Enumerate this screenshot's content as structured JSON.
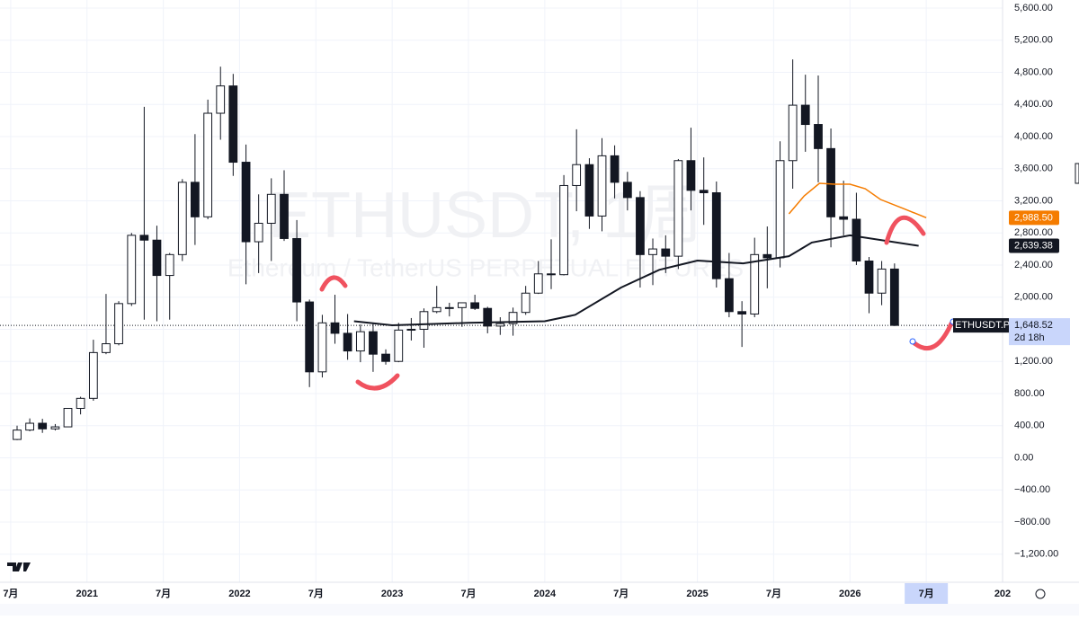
{
  "chart_data": {
    "type": "candlestick",
    "watermark": {
      "symbol": "ETHUSDT, 1周",
      "description": "Ethereum / TetherUS PERPETUAL FUTURES"
    },
    "x": [
      2020.542,
      2020.625,
      2020.708,
      2020.792,
      2020.875,
      2020.958,
      2021.042,
      2021.125,
      2021.208,
      2021.292,
      2021.375,
      2021.458,
      2021.542,
      2021.625,
      2021.708,
      2021.792,
      2021.875,
      2021.958,
      2022.042,
      2022.125,
      2022.208,
      2022.292,
      2022.375,
      2022.458,
      2022.542,
      2022.625,
      2022.708,
      2022.792,
      2022.875,
      2022.958,
      2023.042,
      2023.125,
      2023.208,
      2023.292,
      2023.375,
      2023.458,
      2023.542,
      2023.625,
      2023.708,
      2023.792,
      2023.875,
      2023.958,
      2024.042,
      2024.125,
      2024.208,
      2024.292,
      2024.375,
      2024.458,
      2024.542,
      2024.625,
      2024.708,
      2024.792,
      2024.875,
      2024.958,
      2025.042,
      2025.125,
      2025.208,
      2025.292,
      2025.375,
      2025.458,
      2025.542,
      2025.625,
      2025.708,
      2025.792,
      2025.875,
      2025.958,
      2026.042,
      2026.125,
      2026.208,
      2026.292
    ],
    "open": [
      228,
      345,
      430,
      360,
      385,
      615,
      740,
      1310,
      1420,
      1920,
      2770,
      2710,
      2270,
      2530,
      3430,
      3000,
      4290,
      4630,
      3680,
      2690,
      2920,
      3280,
      2730,
      1940,
      1070,
      1680,
      1550,
      1330,
      1570,
      1290,
      1200,
      1590,
      1600,
      1820,
      1870,
      1870,
      1930,
      1860,
      1640,
      1670,
      1810,
      2050,
      2290,
      2280,
      3390,
      3650,
      3010,
      3760,
      3430,
      3240,
      2530,
      2600,
      2510,
      3700,
      3330,
      3300,
      2230,
      1820,
      1790,
      2530,
      2490,
      3700,
      4390,
      4150,
      3850,
      3000,
      2970,
      2450,
      2050,
      2350
    ],
    "high": [
      400,
      490,
      485,
      420,
      620,
      760,
      1470,
      2040,
      1950,
      2800,
      4370,
      2890,
      2550,
      3470,
      4030,
      4460,
      4870,
      4780,
      3900,
      3280,
      3480,
      3580,
      2960,
      1970,
      1780,
      2030,
      1790,
      1660,
      1680,
      1350,
      1680,
      1740,
      1860,
      2140,
      1930,
      1930,
      2030,
      1880,
      1750,
      1870,
      2140,
      2450,
      2720,
      3520,
      4090,
      3730,
      3980,
      3890,
      3560,
      3320,
      2730,
      2770,
      3720,
      4110,
      3740,
      3440,
      2550,
      1950,
      2740,
      2880,
      3940,
      4960,
      4770,
      4760,
      4100,
      3450,
      3300,
      2500,
      2450,
      2420
    ],
    "low": [
      220,
      330,
      310,
      340,
      380,
      540,
      710,
      1290,
      1400,
      1890,
      1720,
      1700,
      1720,
      2450,
      2650,
      2970,
      3960,
      3510,
      2160,
      2300,
      2450,
      2700,
      1700,
      880,
      1000,
      1420,
      1220,
      1190,
      1070,
      1160,
      1190,
      1460,
      1370,
      1800,
      1760,
      1630,
      1840,
      1550,
      1530,
      1520,
      1780,
      2040,
      2100,
      2270,
      3070,
      2850,
      2820,
      3230,
      3080,
      2120,
      2150,
      2300,
      2350,
      3080,
      2900,
      2120,
      1750,
      1380,
      1750,
      2110,
      2370,
      3350,
      3810,
      3430,
      2620,
      2770,
      2400,
      1800,
      1900,
      1640
    ],
    "close": [
      345,
      430,
      360,
      385,
      615,
      740,
      1310,
      1420,
      1920,
      2770,
      2710,
      2270,
      2530,
      3430,
      3000,
      4290,
      4630,
      3680,
      2690,
      2920,
      3280,
      2730,
      1940,
      1070,
      1680,
      1550,
      1330,
      1570,
      1290,
      1200,
      1590,
      1600,
      1820,
      1870,
      1870,
      1930,
      1860,
      1640,
      1670,
      1810,
      2050,
      2290,
      2280,
      3390,
      3650,
      3010,
      3760,
      3430,
      3240,
      2530,
      2600,
      2510,
      3700,
      3330,
      3300,
      2230,
      1820,
      1790,
      2530,
      2490,
      3700,
      4390,
      4150,
      3850,
      3000,
      2970,
      2450,
      2050,
      2350,
      1648.52
    ],
    "up_color": "#ffffff",
    "down_color": "#131722",
    "wick_color": "#131722",
    "lines": [
      {
        "color": "#131722",
        "x": [
          2022.75,
          2023.0,
          2023.5,
          2024.0,
          2024.2,
          2024.5,
          2024.75,
          2025.0,
          2025.3,
          2025.6,
          2025.75,
          2026.0,
          2026.45
        ],
        "values": [
          1700,
          1650,
          1680,
          1700,
          1780,
          2120,
          2340,
          2455,
          2420,
          2510,
          2680,
          2770,
          2639.38
        ],
        "price_label": {
          "value": 2639.38,
          "label": "2,639.38"
        }
      },
      {
        "color": "#f57c00",
        "x": [
          2025.6,
          2025.7,
          2025.8,
          2025.9,
          2026.0,
          2026.1,
          2026.2,
          2026.35,
          2026.5
        ],
        "values": [
          3037,
          3261,
          3417,
          3406,
          3406,
          3350,
          3216,
          3104,
          2988.5
        ],
        "price_label": {
          "value": 2988.5,
          "label": "2,988.50"
        }
      }
    ],
    "last_price": {
      "symbol": "ETHUSDT.P",
      "value": 1648.52,
      "label": "1,648.52",
      "countdown": "2d 18h"
    },
    "crosshair_x": 2026.5,
    "xlim": [
      2020.43,
      2027.0
    ],
    "xticks": [
      {
        "value": 2020.5,
        "label": "7月"
      },
      2021,
      {
        "value": 2021.5,
        "label": "7月"
      },
      2022,
      {
        "value": 2022.5,
        "label": "7月"
      },
      2023,
      {
        "value": 2023.5,
        "label": "7月"
      },
      2024,
      {
        "value": 2024.5,
        "label": "7月"
      },
      2025,
      {
        "value": 2025.5,
        "label": "7月"
      },
      2026,
      {
        "value": 2026.5,
        "label": "7月"
      },
      {
        "value": 2027,
        "label": "202"
      }
    ],
    "ylim": [
      -1550,
      5700
    ],
    "yticks": [
      {
        "value": -1200,
        "label": "−1,200.00"
      },
      {
        "value": -800,
        "label": "−800.00"
      },
      {
        "value": -400,
        "label": "−400.00"
      },
      {
        "value": 0,
        "label": "0.00"
      },
      {
        "value": 400,
        "label": "400.00"
      },
      {
        "value": 800,
        "label": "800.00"
      },
      {
        "value": 1200,
        "label": "1,200.00"
      },
      {
        "value": 1600,
        "label": "1,600.00"
      },
      {
        "value": 2000,
        "label": "2,000.00"
      },
      {
        "value": 2400,
        "label": "2,400.00"
      },
      {
        "value": 2800,
        "label": "2,800.00"
      },
      {
        "value": 3200,
        "label": "3,200.00"
      },
      {
        "value": 3600,
        "label": "3,600.00"
      },
      {
        "value": 4000,
        "label": "4,000.00"
      },
      {
        "value": 4400,
        "label": "4,400.00"
      },
      {
        "value": 4800,
        "label": "4,800.00"
      },
      {
        "value": 5200,
        "label": "5,200.00"
      },
      {
        "value": 5600,
        "label": "5,600.00"
      }
    ],
    "grid": true
  }
}
